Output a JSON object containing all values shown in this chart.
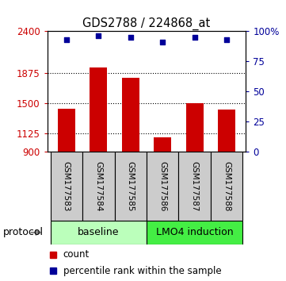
{
  "title": "GDS2788 / 224868_at",
  "samples": [
    "GSM177583",
    "GSM177584",
    "GSM177585",
    "GSM177586",
    "GSM177587",
    "GSM177588"
  ],
  "counts": [
    1430,
    1950,
    1820,
    1080,
    1500,
    1420
  ],
  "percentiles": [
    93,
    96,
    95,
    91,
    95,
    93
  ],
  "left_yticks": [
    900,
    1125,
    1500,
    1875,
    2400
  ],
  "left_ylim": [
    900,
    2400
  ],
  "right_yticks": [
    0,
    25,
    50,
    75,
    100
  ],
  "right_ylim": [
    0,
    100
  ],
  "bar_color": "#cc0000",
  "dot_color": "#000099",
  "protocol_labels": [
    "baseline",
    "LMO4 induction"
  ],
  "protocol_colors": [
    "#bbffbb",
    "#44ee44"
  ],
  "sample_box_color": "#cccccc",
  "legend_items": [
    "count",
    "percentile rank within the sample"
  ],
  "figsize": [
    3.61,
    3.54
  ],
  "dpi": 100
}
